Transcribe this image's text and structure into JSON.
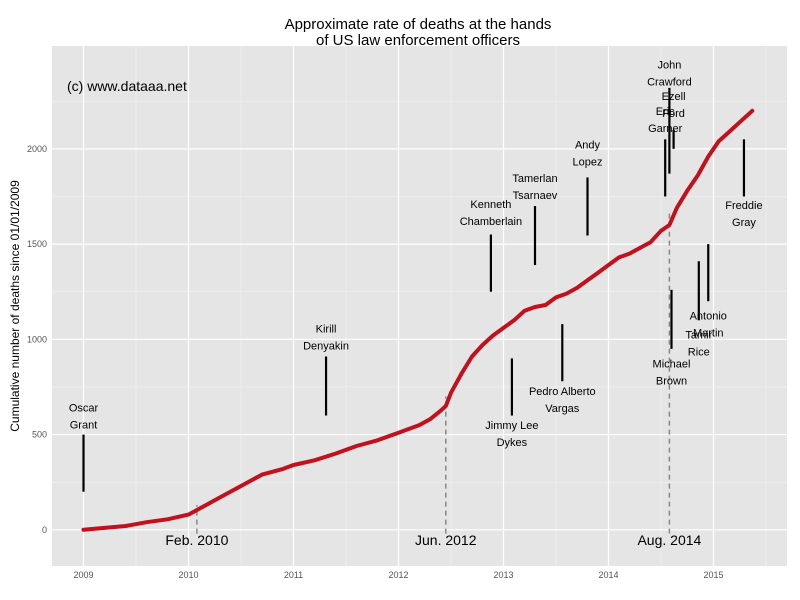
{
  "chart_data": {
    "type": "line",
    "title": [
      "Approximate rate of deaths at the hands",
      "of US law enforcement officers"
    ],
    "xlabel": "",
    "ylabel": "Cumulative number of deaths since 01/01/2009",
    "xlim": [
      2008.7,
      2015.7
    ],
    "ylim": [
      -190,
      2540
    ],
    "x_ticks": [
      "2009",
      "2010",
      "2011",
      "2012",
      "2013",
      "2014",
      "2015"
    ],
    "y_ticks": [
      "0",
      "500",
      "1000",
      "1500",
      "2000"
    ],
    "grid": true,
    "watermark": "(c) www.dataaa.net",
    "series": [
      {
        "color": "#c2101c",
        "x": [
          2009.0,
          2009.2,
          2009.4,
          2009.6,
          2009.8,
          2010.0,
          2010.1,
          2010.3,
          2010.5,
          2010.7,
          2010.9,
          2011.0,
          2011.2,
          2011.4,
          2011.6,
          2011.8,
          2012.0,
          2012.2,
          2012.3,
          2012.4,
          2012.45,
          2012.5,
          2012.6,
          2012.7,
          2012.8,
          2012.9,
          2013.0,
          2013.1,
          2013.2,
          2013.3,
          2013.4,
          2013.5,
          2013.6,
          2013.7,
          2013.8,
          2013.9,
          2014.0,
          2014.1,
          2014.2,
          2014.3,
          2014.4,
          2014.5,
          2014.58,
          2014.65,
          2014.75,
          2014.85,
          2014.95,
          2015.05,
          2015.15,
          2015.25,
          2015.37
        ],
        "values": [
          0,
          10,
          20,
          40,
          55,
          80,
          110,
          170,
          230,
          290,
          320,
          340,
          365,
          400,
          440,
          470,
          510,
          550,
          580,
          625,
          650,
          720,
          820,
          910,
          970,
          1020,
          1060,
          1100,
          1150,
          1170,
          1180,
          1220,
          1240,
          1270,
          1310,
          1350,
          1390,
          1430,
          1450,
          1480,
          1510,
          1570,
          1600,
          1690,
          1780,
          1860,
          1960,
          2040,
          2090,
          2140,
          2200
        ]
      }
    ],
    "period_markers": [
      {
        "x": 2010.08,
        "label": "Feb. 2010",
        "from": -20,
        "to": 130
      },
      {
        "x": 2012.45,
        "label": "Jun. 2012",
        "from": -20,
        "to": 700
      },
      {
        "x": 2014.58,
        "label": "Aug. 2014",
        "from": -20,
        "to": 1680
      }
    ],
    "annotations": [
      {
        "lines": [
          "Oscar",
          "Grant"
        ],
        "x": 2009.0,
        "label_y": 621,
        "bar_from": 200,
        "bar_to": 500
      },
      {
        "lines": [
          "Kirill",
          "Denyakin"
        ],
        "x": 2011.31,
        "label_y": 1037,
        "bar_from": 600,
        "bar_to": 910
      },
      {
        "lines": [
          "Kenneth",
          "Chamberlain"
        ],
        "x": 2012.88,
        "label_y": 1689,
        "bar_from": 1250,
        "bar_to": 1550
      },
      {
        "lines": [
          "Tamerlan",
          "Tsarnaev"
        ],
        "x": 2013.3,
        "label_y": 1826,
        "bar_from": 1390,
        "bar_to": 1700
      },
      {
        "lines": [
          "Andy",
          "Lopez"
        ],
        "x": 2013.8,
        "label_y": 2002,
        "bar_from": 1545,
        "bar_to": 1850
      },
      {
        "lines": [
          "Eric",
          "Garner"
        ],
        "x": 2014.54,
        "label_y": 2178,
        "bar_from": 1750,
        "bar_to": 2050
      },
      {
        "lines": [
          "John",
          "Crawford"
        ],
        "x": 2014.58,
        "label_y": 2423,
        "bar_from": 1870,
        "bar_to": 2320
      },
      {
        "lines": [
          "Ezell",
          "Ford"
        ],
        "x": 2014.62,
        "label_y": 2256,
        "bar_from": 2000,
        "bar_to": 2100
      },
      {
        "lines": [
          "Freddie",
          "Gray"
        ],
        "x": 2015.29,
        "label_y": 1684,
        "bar_from": 1750,
        "bar_to": 2050
      },
      {
        "lines": [
          "Jimmy Lee",
          "Dykes"
        ],
        "x": 2013.08,
        "label_y": 529,
        "bar_from": 600,
        "bar_to": 900
      },
      {
        "lines": [
          "Pedro Alberto",
          "Vargas"
        ],
        "x": 2013.56,
        "label_y": 707,
        "bar_from": 780,
        "bar_to": 1080
      },
      {
        "lines": [
          "Michael",
          "Brown"
        ],
        "x": 2014.6,
        "label_y": 852,
        "bar_from": 950,
        "bar_to": 1260
      },
      {
        "lines": [
          "Tamir",
          "Rice"
        ],
        "x": 2014.86,
        "label_y": 1004,
        "bar_from": 1100,
        "bar_to": 1410
      },
      {
        "lines": [
          "Antonio",
          "Martin"
        ],
        "x": 2014.95,
        "label_y": 1103,
        "bar_from": 1200,
        "bar_to": 1500
      }
    ]
  }
}
